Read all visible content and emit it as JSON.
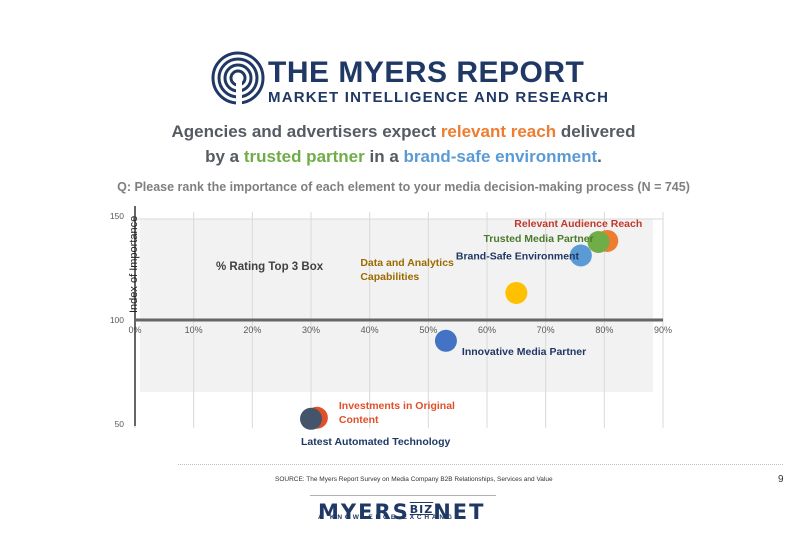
{
  "header": {
    "logo_title": "THE MYERS REPORT",
    "logo_subtitle": "MARKET INTELLIGENCE AND RESEARCH",
    "headline_line1_a": "Agencies and advertisers expect ",
    "headline_line1_b": "relevant reach",
    "headline_line1_c": " delivered",
    "headline_line2_a": "by a ",
    "headline_line2_b": "trusted partner",
    "headline_line2_c": " in a ",
    "headline_line2_d": "brand-safe environment",
    "headline_line2_e": ".",
    "question": "Q: Please rank the importance of each element to your media decision-making process (N = 745)"
  },
  "chart_data": {
    "type": "scatter",
    "title": "",
    "xlabel": "",
    "ylabel": "Index of Importance",
    "xlim": [
      0,
      90
    ],
    "ylim": [
      50,
      150
    ],
    "x_ticks": [
      "0%",
      "10%",
      "20%",
      "30%",
      "40%",
      "50%",
      "60%",
      "70%",
      "80%",
      "90%"
    ],
    "y_ticks": [
      "50",
      "100",
      "150"
    ],
    "annotation": "% Rating Top 3 Box",
    "points": [
      {
        "label": "Relevant Audience Reach",
        "x": 80.5,
        "y": 138,
        "color": "#ed7d31",
        "label_color": "#c0392b"
      },
      {
        "label": "Trusted Media Partner",
        "x": 79,
        "y": 137.5,
        "color": "#70ad47",
        "label_color": "#4a7a2c"
      },
      {
        "label": "Brand-Safe Environment",
        "x": 76,
        "y": 131,
        "color": "#5b9bd5",
        "label_color": "#1f3864"
      },
      {
        "label": "Data and Analytics Capabilities",
        "label_lines": [
          "Data and Analytics",
          "Capabilities"
        ],
        "x": 65,
        "y": 113,
        "color": "#ffc000",
        "label_color": "#9c6b00"
      },
      {
        "label": "Innovative Media Partner",
        "x": 53,
        "y": 90,
        "color": "#4472c4",
        "label_color": "#1f3864"
      },
      {
        "label": "Investments in Original Content",
        "label_lines": [
          "Investments in Original",
          "Content"
        ],
        "x": 31,
        "y": 53,
        "color": "#e0502a",
        "label_color": "#e0502a"
      },
      {
        "label": "Latest Automated Technology",
        "x": 30,
        "y": 52.5,
        "color": "#44546a",
        "label_color": "#1f3864"
      }
    ]
  },
  "footer": {
    "source": "SOURCE: The Myers Report Survey on Media Company B2B Relationships, Services and Value",
    "page_number": "9",
    "biz_logo_a": "MYERS",
    "biz_logo_b": "BIZ",
    "biz_logo_c": "NET",
    "biz_tagline": "A KNOWLEDGE EXCHANGE"
  }
}
